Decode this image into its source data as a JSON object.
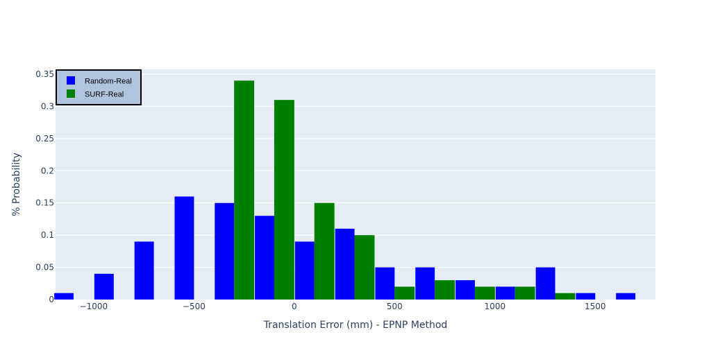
{
  "chart_data": {
    "type": "bar",
    "title": "",
    "xlabel": "Translation Error (mm) - EPNP Method",
    "ylabel": "% Probability",
    "xlim": [
      -1190,
      1800
    ],
    "ylim": [
      0,
      0.35
    ],
    "x_ticks": [
      -1000,
      -500,
      0,
      500,
      1000,
      1500
    ],
    "x_tick_labels": [
      "−1000",
      "−500",
      "0",
      "500",
      "1000",
      "1500"
    ],
    "y_ticks": [
      0,
      0.05,
      0.1,
      0.15,
      0.2,
      0.25,
      0.3,
      0.35
    ],
    "y_tick_labels": [
      "0",
      "0.05",
      "0.1",
      "0.15",
      "0.2",
      "0.25",
      "0.3",
      "0.35"
    ],
    "x": [
      -1100,
      -900,
      -700,
      -500,
      -300,
      -100,
      100,
      300,
      500,
      700,
      900,
      1100,
      1300,
      1500,
      1700
    ],
    "bin_width": 200,
    "grid": true,
    "legend_position": "top-left",
    "series": [
      {
        "name": "Random-Real",
        "color": "#0000ff",
        "values": [
          0.01,
          0.04,
          0.09,
          0.16,
          0.15,
          0.13,
          0.09,
          0.11,
          0.05,
          0.05,
          0.03,
          0.02,
          0.05,
          0.01,
          0.01
        ]
      },
      {
        "name": "SURF-Real",
        "color": "#008000",
        "values": [
          0,
          0,
          0,
          0,
          0.34,
          0.31,
          0.15,
          0.1,
          0.02,
          0.03,
          0.02,
          0.02,
          0.01,
          0,
          0
        ]
      }
    ],
    "colors": {
      "plot_background": "#e5ecf6",
      "gridline": "#ffffff",
      "legend_background": "#b0c4de",
      "legend_border": "#000000",
      "text": "#2a3f5f"
    }
  }
}
